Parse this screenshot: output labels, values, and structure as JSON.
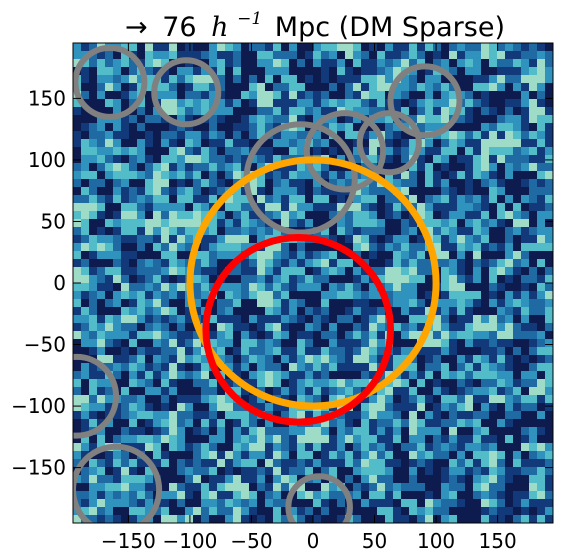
{
  "chart_data": {
    "type": "heatmap",
    "title": "→ 76 h⁻¹ Mpc (DM Sparse)",
    "title_parts": {
      "arrow": "→",
      "value": "76",
      "h": "h",
      "exp": "−1",
      "rest": "Mpc (DM Sparse)"
    },
    "xlabel": "",
    "ylabel": "",
    "xlim": [
      -195,
      195
    ],
    "ylim": [
      -195,
      195
    ],
    "xticks": [
      -150,
      -100,
      -50,
      0,
      50,
      100,
      150
    ],
    "yticks": [
      -150,
      -100,
      -50,
      0,
      50,
      100,
      150
    ],
    "xtick_labels": [
      "−150",
      "−100",
      "−50",
      "0",
      "50",
      "100",
      "150"
    ],
    "ytick_labels": [
      "−150",
      "−100",
      "−50",
      "0",
      "50",
      "100",
      "150"
    ],
    "colormap": [
      "#0d1b4f",
      "#123a7a",
      "#1f6aa3",
      "#2f93bd",
      "#52bcc9",
      "#9fdcc8"
    ],
    "grid": false,
    "circles": [
      {
        "group": "highlight-orange",
        "color": "#ffa500",
        "cx": 0,
        "cy": 0,
        "r": 100
      },
      {
        "group": "highlight-red",
        "color": "#ff0000",
        "cx": -12,
        "cy": -38,
        "r": 75
      },
      {
        "group": "gray",
        "color": "#808080",
        "cx": -165,
        "cy": 163,
        "r": 28
      },
      {
        "group": "gray",
        "color": "#808080",
        "cx": -103,
        "cy": 155,
        "r": 26
      },
      {
        "group": "gray",
        "color": "#808080",
        "cx": -10,
        "cy": 85,
        "r": 44
      },
      {
        "group": "gray",
        "color": "#808080",
        "cx": 26,
        "cy": 107,
        "r": 31
      },
      {
        "group": "gray",
        "color": "#808080",
        "cx": 62,
        "cy": 114,
        "r": 24
      },
      {
        "group": "gray",
        "color": "#808080",
        "cx": 91,
        "cy": 148,
        "r": 28
      },
      {
        "group": "gray",
        "color": "#808080",
        "cx": -192,
        "cy": -92,
        "r": 32
      },
      {
        "group": "gray",
        "color": "#808080",
        "cx": -160,
        "cy": -168,
        "r": 35
      },
      {
        "group": "gray",
        "color": "#808080",
        "cx": 5,
        "cy": -182,
        "r": 25
      }
    ]
  }
}
